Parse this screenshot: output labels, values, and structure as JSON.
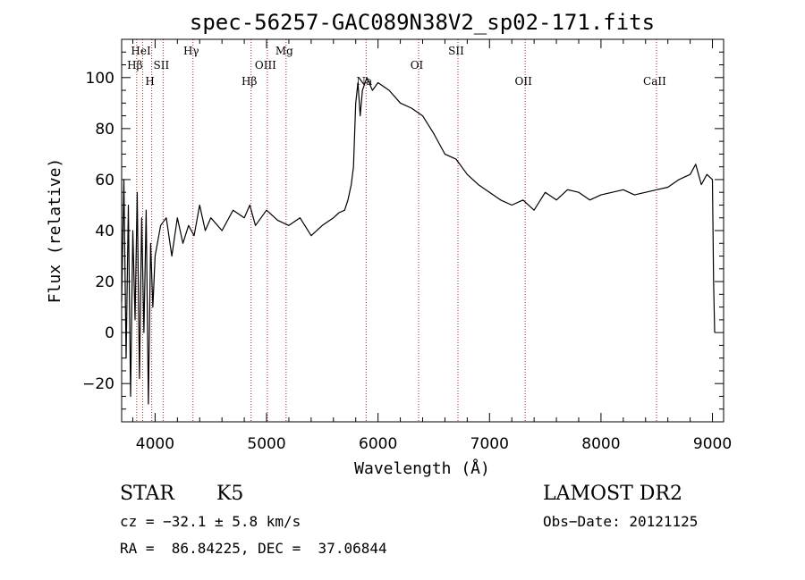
{
  "chart_data": {
    "type": "line",
    "title": "spec-56257-GAC089N38V2_sp02-171.fits",
    "xlabel": "Wavelength (Å)",
    "ylabel": "Flux (relative)",
    "xlim": [
      3700,
      9100
    ],
    "ylim": [
      -35,
      115
    ],
    "x_ticks": [
      4000,
      5000,
      6000,
      7000,
      8000,
      9000
    ],
    "y_ticks": [
      -20,
      0,
      20,
      40,
      60,
      80,
      100
    ],
    "x_tick_labels": [
      "4000",
      "5000",
      "6000",
      "7000",
      "8000",
      "9000"
    ],
    "y_tick_labels": [
      "−20",
      "0",
      "20",
      "40",
      "60",
      "80",
      "100"
    ],
    "x_minor_step": 200,
    "y_minor_step": 5,
    "grid": false,
    "series": [
      {
        "color": "#000000",
        "x": [
          3700,
          3720,
          3740,
          3760,
          3780,
          3800,
          3820,
          3840,
          3860,
          3880,
          3900,
          3920,
          3940,
          3960,
          3980,
          4000,
          4050,
          4100,
          4150,
          4200,
          4250,
          4300,
          4350,
          4400,
          4450,
          4500,
          4600,
          4700,
          4800,
          4850,
          4900,
          5000,
          5100,
          5200,
          5300,
          5400,
          5500,
          5600,
          5650,
          5700,
          5730,
          5760,
          5780,
          5800,
          5820,
          5840,
          5860,
          5900,
          5950,
          6000,
          6100,
          6200,
          6300,
          6400,
          6500,
          6600,
          6700,
          6800,
          6900,
          7000,
          7100,
          7200,
          7300,
          7400,
          7500,
          7600,
          7700,
          7800,
          7900,
          8000,
          8100,
          8200,
          8300,
          8400,
          8500,
          8600,
          8700,
          8800,
          8850,
          8900,
          8950,
          9000,
          9010,
          9020
        ],
        "y": [
          12,
          60,
          -10,
          50,
          -25,
          40,
          5,
          55,
          -18,
          45,
          0,
          48,
          -28,
          35,
          10,
          30,
          42,
          45,
          30,
          45,
          35,
          42,
          38,
          50,
          40,
          45,
          40,
          48,
          45,
          50,
          42,
          48,
          44,
          42,
          45,
          38,
          42,
          45,
          47,
          48,
          52,
          58,
          65,
          90,
          98,
          85,
          95,
          100,
          95,
          98,
          95,
          90,
          88,
          85,
          78,
          70,
          68,
          62,
          58,
          55,
          52,
          50,
          52,
          48,
          55,
          52,
          56,
          55,
          52,
          54,
          55,
          56,
          54,
          55,
          56,
          57,
          60,
          62,
          66,
          58,
          62,
          60,
          20,
          0
        ]
      }
    ],
    "spectral_lines": [
      {
        "label": "Hβ",
        "wavelength": 3835,
        "row": 2
      },
      {
        "label": "HeI",
        "wavelength": 3889,
        "row": 1
      },
      {
        "label": "H",
        "wavelength": 3970,
        "row": 3
      },
      {
        "label": "SII",
        "wavelength": 4072,
        "row": 2
      },
      {
        "label": "Hγ",
        "wavelength": 4340,
        "row": 1
      },
      {
        "label": "Hβ",
        "wavelength": 4861,
        "row": 3
      },
      {
        "label": "OIII",
        "wavelength": 5007,
        "row": 2
      },
      {
        "label": "Mg",
        "wavelength": 5175,
        "row": 1
      },
      {
        "label": "Na",
        "wavelength": 5893,
        "row": 3
      },
      {
        "label": "OI",
        "wavelength": 6364,
        "row": 2
      },
      {
        "label": "SII",
        "wavelength": 6717,
        "row": 1
      },
      {
        "label": "OII",
        "wavelength": 7320,
        "row": 3
      },
      {
        "label": "CaII",
        "wavelength": 8498,
        "row": 3
      }
    ],
    "line_color": "#aa2020"
  },
  "info": {
    "object_class": "STAR",
    "subclass": "K5",
    "survey": "LAMOST DR2",
    "redshift_line": "cz = −32.1 ± 5.8 km/s",
    "obs_date_line": "Obs−Date: 20121125",
    "coords_line": "RA =  86.84225, DEC =  37.06844"
  }
}
